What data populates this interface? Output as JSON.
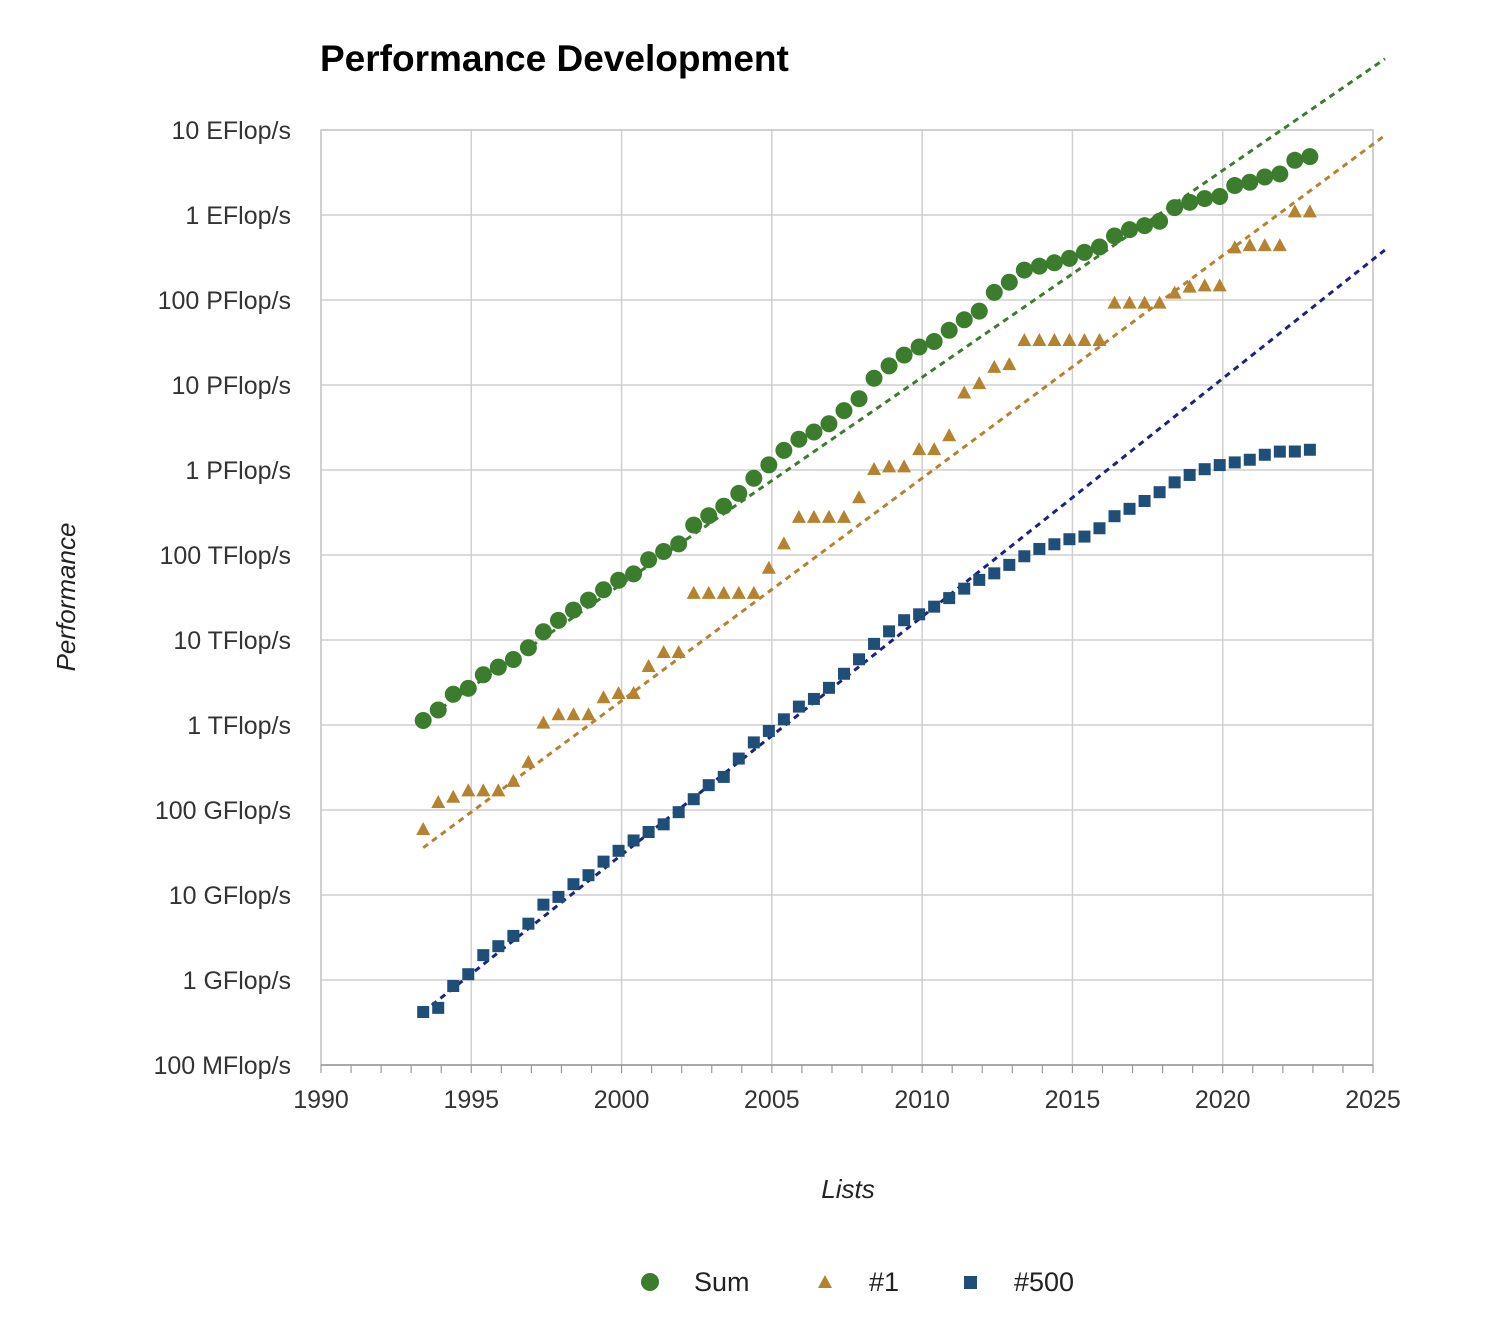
{
  "chart_data": {
    "type": "scatter",
    "title": "Performance Development",
    "xlabel": "Lists",
    "ylabel": "Performance",
    "xlim": [
      1990,
      2025
    ],
    "ylim_log10_gflops": [
      -1,
      10
    ],
    "y_scale": "log",
    "y_unit": "GFlop/s",
    "grid": true,
    "legend_position": "bottom",
    "x_ticks": [
      "1990",
      "1995",
      "2000",
      "2005",
      "2010",
      "2015",
      "2020",
      "2025"
    ],
    "y_ticks": [
      {
        "label": "10 EFlop/s",
        "gflops": 10000000000.0
      },
      {
        "label": "1 EFlop/s",
        "gflops": 1000000000.0
      },
      {
        "label": "100 PFlop/s",
        "gflops": 100000000.0
      },
      {
        "label": "10 PFlop/s",
        "gflops": 10000000.0
      },
      {
        "label": "1 PFlop/s",
        "gflops": 1000000.0
      },
      {
        "label": "100 TFlop/s",
        "gflops": 100000.0
      },
      {
        "label": "10 TFlop/s",
        "gflops": 10000.0
      },
      {
        "label": "1 TFlop/s",
        "gflops": 1000.0
      },
      {
        "label": "100 GFlop/s",
        "gflops": 100.0
      },
      {
        "label": "10 GFlop/s",
        "gflops": 10.0
      },
      {
        "label": "1 GFlop/s",
        "gflops": 1.0
      },
      {
        "label": "100 MFlop/s",
        "gflops": 0.1
      }
    ],
    "series": [
      {
        "name": "Sum",
        "marker": "circle",
        "color": "#3b7d2d",
        "points": [
          [
            1993.4,
            1130
          ],
          [
            1993.9,
            1500
          ],
          [
            1994.4,
            2300
          ],
          [
            1994.9,
            2700
          ],
          [
            1995.4,
            3900
          ],
          [
            1995.9,
            4800
          ],
          [
            1996.4,
            5900
          ],
          [
            1996.9,
            8100
          ],
          [
            1997.4,
            12500
          ],
          [
            1997.9,
            17000
          ],
          [
            1998.4,
            22500
          ],
          [
            1998.9,
            29500
          ],
          [
            1999.4,
            39000
          ],
          [
            1999.9,
            50500
          ],
          [
            2000.4,
            60000
          ],
          [
            2000.9,
            88000
          ],
          [
            2001.4,
            110000
          ],
          [
            2001.9,
            135000
          ],
          [
            2002.4,
            225000
          ],
          [
            2002.9,
            290000
          ],
          [
            2003.4,
            375000
          ],
          [
            2003.9,
            530000
          ],
          [
            2004.4,
            800000
          ],
          [
            2004.9,
            1150000
          ],
          [
            2005.4,
            1700000
          ],
          [
            2005.9,
            2300000
          ],
          [
            2006.4,
            2800000
          ],
          [
            2006.9,
            3500000
          ],
          [
            2007.4,
            5000000
          ],
          [
            2007.9,
            6900000
          ],
          [
            2008.4,
            12000000
          ],
          [
            2008.9,
            16800000
          ],
          [
            2009.4,
            22500000
          ],
          [
            2009.9,
            28000000
          ],
          [
            2010.4,
            32500000
          ],
          [
            2010.9,
            44000000
          ],
          [
            2011.4,
            58500000
          ],
          [
            2011.9,
            74000000
          ],
          [
            2012.4,
            123000000
          ],
          [
            2012.9,
            162000000
          ],
          [
            2013.4,
            225000000
          ],
          [
            2013.9,
            250000000
          ],
          [
            2014.4,
            274000000
          ],
          [
            2014.9,
            309000000
          ],
          [
            2015.4,
            363000000
          ],
          [
            2015.9,
            420000000
          ],
          [
            2016.4,
            567000000
          ],
          [
            2016.9,
            672000000
          ],
          [
            2017.4,
            749000000
          ],
          [
            2017.9,
            845000000
          ],
          [
            2018.4,
            1220000000
          ],
          [
            2018.9,
            1410000000
          ],
          [
            2019.4,
            1560000000
          ],
          [
            2019.9,
            1650000000
          ],
          [
            2020.4,
            2220000000
          ],
          [
            2020.9,
            2430000000
          ],
          [
            2021.4,
            2800000000
          ],
          [
            2021.9,
            3040000000
          ],
          [
            2022.4,
            4400000000
          ],
          [
            2022.9,
            4860000000
          ]
        ]
      },
      {
        "name": "#1",
        "marker": "triangle",
        "color": "#b5832f",
        "points": [
          [
            1993.4,
            59.7
          ],
          [
            1993.9,
            124
          ],
          [
            1994.4,
            143
          ],
          [
            1994.9,
            170
          ],
          [
            1995.4,
            170
          ],
          [
            1995.9,
            170
          ],
          [
            1996.4,
            220
          ],
          [
            1996.9,
            368
          ],
          [
            1997.4,
            1068
          ],
          [
            1997.9,
            1338
          ],
          [
            1998.4,
            1338
          ],
          [
            1998.9,
            1338
          ],
          [
            1999.4,
            2121
          ],
          [
            1999.9,
            2379
          ],
          [
            2000.4,
            2379
          ],
          [
            2000.9,
            4938
          ],
          [
            2001.4,
            7226
          ],
          [
            2001.9,
            7226
          ],
          [
            2002.4,
            35860
          ],
          [
            2002.9,
            35860
          ],
          [
            2003.4,
            35860
          ],
          [
            2003.9,
            35860
          ],
          [
            2004.4,
            35860
          ],
          [
            2004.9,
            70720
          ],
          [
            2005.4,
            136800
          ],
          [
            2005.9,
            280600
          ],
          [
            2006.4,
            280600
          ],
          [
            2006.9,
            280600
          ],
          [
            2007.4,
            280600
          ],
          [
            2007.9,
            478200
          ],
          [
            2008.4,
            1026000
          ],
          [
            2008.9,
            1105000
          ],
          [
            2009.4,
            1105000
          ],
          [
            2009.9,
            1759000
          ],
          [
            2010.4,
            1759000
          ],
          [
            2010.9,
            2566000
          ],
          [
            2011.4,
            8162000
          ],
          [
            2011.9,
            10510000
          ],
          [
            2012.4,
            16320000
          ],
          [
            2012.9,
            17590000
          ],
          [
            2013.4,
            33860000
          ],
          [
            2013.9,
            33860000
          ],
          [
            2014.4,
            33860000
          ],
          [
            2014.9,
            33860000
          ],
          [
            2015.4,
            33860000
          ],
          [
            2015.9,
            33860000
          ],
          [
            2016.4,
            93010000
          ],
          [
            2016.9,
            93010000
          ],
          [
            2017.4,
            93010000
          ],
          [
            2017.9,
            93010000
          ],
          [
            2018.4,
            122300000
          ],
          [
            2018.9,
            143500000
          ],
          [
            2019.4,
            148600000
          ],
          [
            2019.9,
            148600000
          ],
          [
            2020.4,
            415500000
          ],
          [
            2020.9,
            442000000
          ],
          [
            2021.4,
            442000000
          ],
          [
            2021.9,
            442000000
          ],
          [
            2022.4,
            1102000000
          ],
          [
            2022.9,
            1102000000
          ]
        ]
      },
      {
        "name": "#500",
        "marker": "square",
        "color": "#1f4e79",
        "points": [
          [
            1993.4,
            0.42
          ],
          [
            1993.9,
            0.47
          ],
          [
            1994.4,
            0.85
          ],
          [
            1994.9,
            1.17
          ],
          [
            1995.4,
            1.96
          ],
          [
            1995.9,
            2.5
          ],
          [
            1996.4,
            3.3
          ],
          [
            1996.9,
            4.6
          ],
          [
            1997.4,
            7.7
          ],
          [
            1997.9,
            9.5
          ],
          [
            1998.4,
            13.4
          ],
          [
            1998.9,
            17.1
          ],
          [
            1999.4,
            24.7
          ],
          [
            1999.9,
            33.1
          ],
          [
            2000.4,
            43.8
          ],
          [
            2000.9,
            55.1
          ],
          [
            2001.4,
            67.8
          ],
          [
            2001.9,
            94.3
          ],
          [
            2002.4,
            134
          ],
          [
            2002.9,
            196
          ],
          [
            2003.4,
            245
          ],
          [
            2003.9,
            403
          ],
          [
            2004.4,
            624
          ],
          [
            2004.9,
            851
          ],
          [
            2005.4,
            1166
          ],
          [
            2005.9,
            1646
          ],
          [
            2006.4,
            2026
          ],
          [
            2006.9,
            2737
          ],
          [
            2007.4,
            4005
          ],
          [
            2007.9,
            5929
          ],
          [
            2008.4,
            9000
          ],
          [
            2008.9,
            12640
          ],
          [
            2009.4,
            17090
          ],
          [
            2009.9,
            20050
          ],
          [
            2010.4,
            24670
          ],
          [
            2010.9,
            31120
          ],
          [
            2011.4,
            40190
          ],
          [
            2011.9,
            50940
          ],
          [
            2012.4,
            60820
          ],
          [
            2012.9,
            76500
          ],
          [
            2013.4,
            96620
          ],
          [
            2013.9,
            117800
          ],
          [
            2014.4,
            133700
          ],
          [
            2014.9,
            153400
          ],
          [
            2015.4,
            164700
          ],
          [
            2015.9,
            206300
          ],
          [
            2016.4,
            286100
          ],
          [
            2016.9,
            349300
          ],
          [
            2017.4,
            432200
          ],
          [
            2017.9,
            548300
          ],
          [
            2018.4,
            715600
          ],
          [
            2018.9,
            874800
          ],
          [
            2019.4,
            1022000
          ],
          [
            2019.9,
            1142000
          ],
          [
            2020.4,
            1228000
          ],
          [
            2020.9,
            1320000
          ],
          [
            2021.4,
            1511000
          ],
          [
            2021.9,
            1646000
          ],
          [
            2022.4,
            1650000
          ],
          [
            2022.9,
            1730000
          ]
        ]
      }
    ],
    "trendlines": [
      {
        "series": "Sum",
        "color": "#3b7d2d",
        "style": "dotted",
        "x": [
          1993.4,
          2025
        ],
        "y": [
          1130,
          55000000000
        ]
      },
      {
        "series": "#1",
        "color": "#b5832f",
        "style": "dotted",
        "x": [
          1993.4,
          2025
        ],
        "y": [
          36,
          6800000000
        ]
      },
      {
        "series": "#500",
        "color": "#1a237e",
        "style": "dotted",
        "x": [
          1993.4,
          2025
        ],
        "y": [
          0.42,
          300000000
        ]
      }
    ]
  }
}
